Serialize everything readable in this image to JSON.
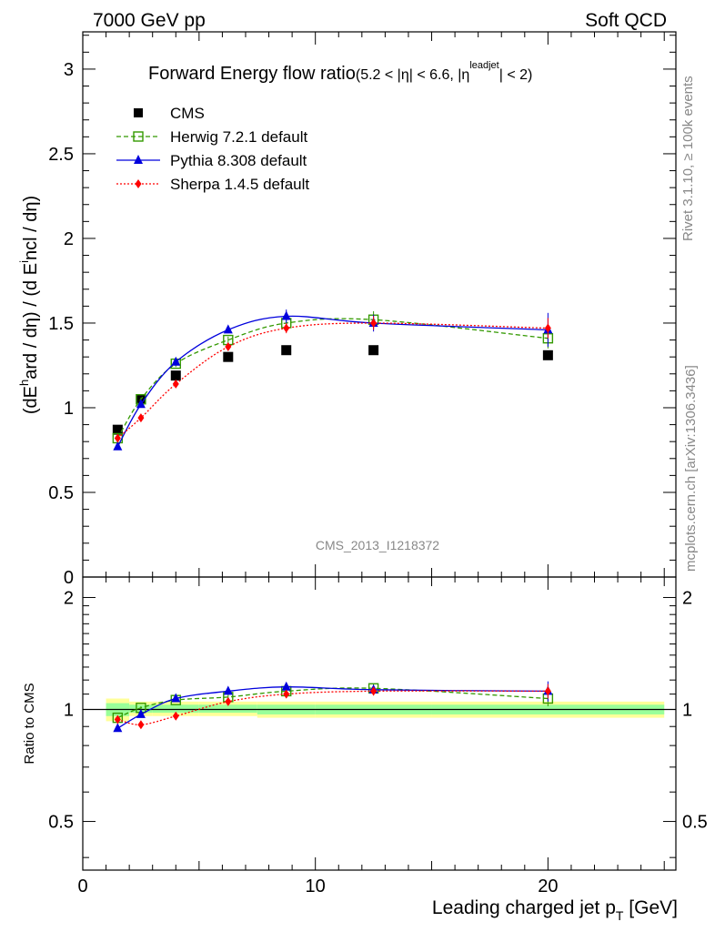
{
  "header": {
    "left": "7000 GeV pp",
    "right": "Soft QCD"
  },
  "side_labels": {
    "rivet": "Rivet 3.1.10, ≥ 100k events",
    "mcplots": "mcplots.cern.ch [arXiv:1306.3436]"
  },
  "watermark": "CMS_2013_I1218372",
  "chart_data": [
    {
      "type": "scatter",
      "panel": "main",
      "title_main": "Forward Energy flow ratio",
      "title_cut": "(5.2 < |η| < 6.6, |η",
      "title_cut_sup": "leadjet",
      "title_cut_end": "| < 2)",
      "ylabel": "(dE^hard / dη) / (d Eincl / dη)",
      "ylabel_parts": {
        "a": "(dE",
        "sup": "h",
        "b": "ard / dη) / (d E",
        "sup2": "i",
        "c": "ncl / dη)"
      },
      "xlim": [
        0,
        25.5
      ],
      "ylim": [
        0,
        3.22
      ],
      "yticks": [
        0,
        0.5,
        1,
        1.5,
        2,
        2.5,
        3
      ],
      "ytick_labels": [
        "0",
        "0.5",
        "1",
        "1.5",
        "2",
        "2.5",
        "3"
      ],
      "x": [
        1.5,
        2.5,
        4,
        6.25,
        8.75,
        12.5,
        20
      ],
      "legend_position": "top-left",
      "series": [
        {
          "name": "CMS",
          "color": "#000000",
          "marker": "square",
          "line": "none",
          "values": [
            0.87,
            1.05,
            1.19,
            1.3,
            1.34,
            1.34,
            1.31
          ]
        },
        {
          "name": "Herwig 7.2.1 default",
          "color": "#339900",
          "marker": "open-square",
          "line": "dashed",
          "values": [
            0.82,
            1.05,
            1.26,
            1.4,
            1.5,
            1.52,
            1.41
          ],
          "errors": [
            0.01,
            0.01,
            0.02,
            0.02,
            0.03,
            0.05,
            0.06
          ]
        },
        {
          "name": "Pythia 8.308 default",
          "color": "#0000dd",
          "marker": "triangle",
          "line": "solid",
          "values": [
            0.77,
            1.02,
            1.27,
            1.46,
            1.54,
            1.5,
            1.46
          ],
          "errors": [
            0.01,
            0.01,
            0.02,
            0.02,
            0.04,
            0.05,
            0.1
          ]
        },
        {
          "name": "Sherpa 1.4.5 default",
          "color": "#ff0000",
          "marker": "diamond",
          "line": "dotted",
          "values": [
            0.82,
            0.94,
            1.14,
            1.36,
            1.47,
            1.5,
            1.47
          ],
          "errors": [
            0.01,
            0.01,
            0.02,
            0.02,
            0.03,
            0.04,
            0.06
          ]
        }
      ]
    },
    {
      "type": "scatter",
      "panel": "ratio",
      "ylabel": "Ratio to CMS",
      "xlabel": "Leading charged jet p",
      "xlabel_sub": "T",
      "xlabel_unit": " [GeV]",
      "xlim": [
        0,
        25.5
      ],
      "ylim": [
        0.37,
        2.27
      ],
      "yscale": "log",
      "xticks": [
        0,
        10,
        20
      ],
      "xtick_labels": [
        "0",
        "10",
        "20"
      ],
      "yticks": [
        0.5,
        1,
        2
      ],
      "ytick_labels": [
        "0.5",
        "1",
        "2"
      ],
      "x": [
        1.5,
        2.5,
        4,
        6.25,
        8.75,
        12.5,
        20
      ],
      "bands": {
        "x_edges": [
          1.0,
          2.0,
          3.0,
          5.0,
          7.5,
          10.0,
          15.0,
          25.0
        ],
        "yellow_lo": [
          0.93,
          0.96,
          0.96,
          0.96,
          0.95,
          0.95,
          0.95
        ],
        "yellow_hi": [
          1.07,
          1.05,
          1.05,
          1.05,
          1.05,
          1.05,
          1.05
        ],
        "green_lo": [
          0.96,
          0.98,
          0.98,
          0.98,
          0.97,
          0.97,
          0.97
        ],
        "green_hi": [
          1.04,
          1.03,
          1.03,
          1.03,
          1.03,
          1.03,
          1.03
        ],
        "yellow_color": "#ffff99",
        "green_color": "#99ff99"
      },
      "series": [
        {
          "name": "Herwig 7.2.1 default",
          "color": "#339900",
          "marker": "open-square",
          "line": "dashed",
          "values": [
            0.95,
            1.01,
            1.06,
            1.08,
            1.12,
            1.14,
            1.07
          ],
          "errors": [
            0.01,
            0.01,
            0.01,
            0.02,
            0.02,
            0.03,
            0.05
          ]
        },
        {
          "name": "Pythia 8.308 default",
          "color": "#0000dd",
          "marker": "triangle",
          "line": "solid",
          "values": [
            0.89,
            0.97,
            1.07,
            1.12,
            1.15,
            1.13,
            1.12
          ],
          "errors": [
            0.01,
            0.01,
            0.01,
            0.02,
            0.02,
            0.03,
            0.07
          ]
        },
        {
          "name": "Sherpa 1.4.5 default",
          "color": "#ff0000",
          "marker": "diamond",
          "line": "dotted",
          "values": [
            0.94,
            0.91,
            0.96,
            1.05,
            1.1,
            1.12,
            1.12
          ],
          "errors": [
            0.01,
            0.01,
            0.01,
            0.02,
            0.02,
            0.03,
            0.05
          ]
        }
      ]
    }
  ]
}
